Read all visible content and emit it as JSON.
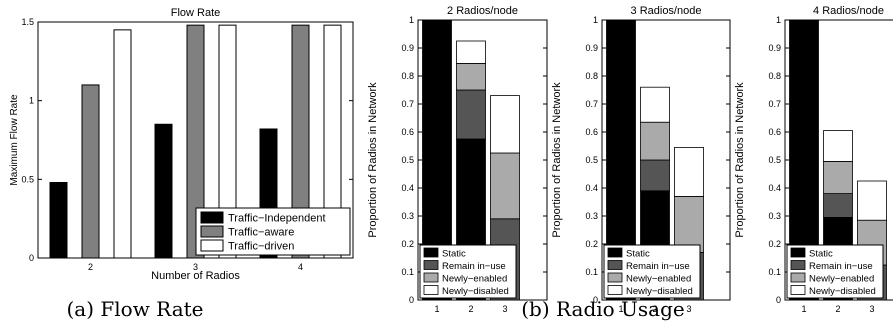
{
  "colors": {
    "black": "#000000",
    "dark_gray": "#555555",
    "medium_gray": "#808080",
    "light_gray": "#aaaaaa",
    "white": "#ffffff"
  },
  "captions": {
    "a": "(a) Flow Rate",
    "b": "(b) Radio Usage"
  },
  "chart_data": [
    {
      "type": "bar",
      "title": "Flow Rate",
      "xlabel": "Number of Radios",
      "ylabel": "Maximum Flow Rate",
      "categories": [
        "2",
        "3",
        "4"
      ],
      "ylim": [
        0,
        1.5
      ],
      "yticks": [
        0,
        0.5,
        1,
        1.5
      ],
      "ytick_labels": [
        "0",
        "0.5",
        "1",
        "1.5"
      ],
      "legend_position": "bottom-right",
      "series": [
        {
          "name": "Traffic−Independent",
          "color": "#000000",
          "values": [
            0.48,
            0.85,
            0.82
          ]
        },
        {
          "name": "Traffic−aware",
          "color": "#808080",
          "values": [
            1.1,
            1.48,
            1.48
          ]
        },
        {
          "name": "Traffic−driven",
          "color": "#ffffff",
          "values": [
            1.45,
            1.48,
            1.48
          ]
        }
      ]
    },
    {
      "type": "bar",
      "stacked": true,
      "title": "2 Radios/node",
      "ylabel": "Proportion of Radios in Network",
      "categories": [
        "1",
        "2",
        "3"
      ],
      "ylim": [
        0,
        1
      ],
      "yticks": [
        0,
        0.1,
        0.2,
        0.3,
        0.4,
        0.5,
        0.6,
        0.7,
        0.8,
        0.9,
        1
      ],
      "ytick_labels": [
        "0",
        "0.1",
        "0.2",
        "0.3",
        "0.4",
        "0.5",
        "0.6",
        "0.7",
        "0.8",
        "0.9",
        "1"
      ],
      "legend_position": "bottom-left",
      "series": [
        {
          "name": "Static",
          "color": "#000000",
          "values": [
            1.0,
            0.575,
            0
          ]
        },
        {
          "name": "Remain in−use",
          "color": "#555555",
          "values": [
            0,
            0.175,
            0.29
          ]
        },
        {
          "name": "Newly−enabled",
          "color": "#aaaaaa",
          "values": [
            0,
            0.095,
            0.235
          ]
        },
        {
          "name": "Newly−disabled",
          "color": "#ffffff",
          "values": [
            0,
            0.08,
            0.205
          ]
        }
      ]
    },
    {
      "type": "bar",
      "stacked": true,
      "title": "3 Radios/node",
      "ylabel": "Proportion of Radios in Network",
      "categories": [
        "1",
        "2",
        "3"
      ],
      "ylim": [
        0,
        1
      ],
      "yticks": [
        0,
        0.1,
        0.2,
        0.3,
        0.4,
        0.5,
        0.6,
        0.7,
        0.8,
        0.9,
        1
      ],
      "ytick_labels": [
        "0",
        "0.1",
        "0.2",
        "0.3",
        "0.4",
        "0.5",
        "0.6",
        "0.7",
        "0.8",
        "0.9",
        "1"
      ],
      "legend_position": "bottom-left",
      "series": [
        {
          "name": "Static",
          "color": "#000000",
          "values": [
            1.0,
            0.39,
            0
          ]
        },
        {
          "name": "Remain in−use",
          "color": "#555555",
          "values": [
            0,
            0.11,
            0.17
          ]
        },
        {
          "name": "Newly−enabled",
          "color": "#aaaaaa",
          "values": [
            0,
            0.135,
            0.2
          ]
        },
        {
          "name": "Newly−disabled",
          "color": "#ffffff",
          "values": [
            0,
            0.125,
            0.175
          ]
        }
      ]
    },
    {
      "type": "bar",
      "stacked": true,
      "title": "4 Radios/node",
      "ylabel": "Proportion of Radios in Network",
      "categories": [
        "1",
        "2",
        "3"
      ],
      "ylim": [
        0,
        1
      ],
      "yticks": [
        0,
        0.1,
        0.2,
        0.3,
        0.4,
        0.5,
        0.6,
        0.7,
        0.8,
        0.9,
        1
      ],
      "ytick_labels": [
        "0",
        "0.1",
        "0.2",
        "0.3",
        "0.4",
        "0.5",
        "0.6",
        "0.7",
        "0.8",
        "0.9",
        "1"
      ],
      "legend_position": "bottom-left",
      "series": [
        {
          "name": "Static",
          "color": "#000000",
          "values": [
            1.0,
            0.295,
            0
          ]
        },
        {
          "name": "Remain in−use",
          "color": "#555555",
          "values": [
            0,
            0.085,
            0.125
          ]
        },
        {
          "name": "Newly−enabled",
          "color": "#aaaaaa",
          "values": [
            0,
            0.115,
            0.16
          ]
        },
        {
          "name": "Newly−disabled",
          "color": "#ffffff",
          "values": [
            0,
            0.11,
            0.14
          ]
        }
      ]
    }
  ]
}
